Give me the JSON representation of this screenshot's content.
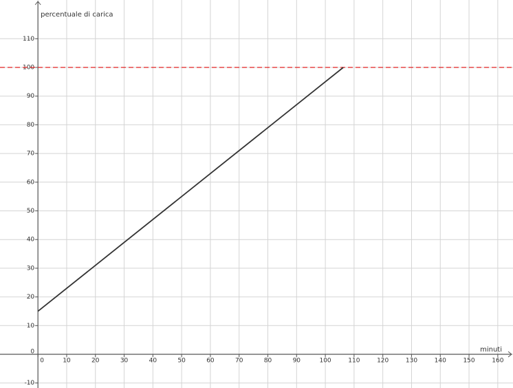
{
  "chart_data": {
    "type": "line",
    "x_label": "minuti",
    "y_label": "percentuale di carica",
    "x": [
      0,
      106.25
    ],
    "series": [
      {
        "color": "#333333",
        "values": [
          15,
          100
        ]
      }
    ],
    "reference_line": {
      "value": 100,
      "color": "#e02020"
    },
    "xlim": [
      -13.2,
      165.3
    ],
    "ylim": [
      -11.75,
      123.5
    ],
    "xticks": [
      0,
      10,
      20,
      30,
      40,
      50,
      60,
      70,
      80,
      90,
      100,
      110,
      120,
      130,
      140,
      150,
      160
    ],
    "yticks": [
      -10,
      0,
      10,
      20,
      30,
      40,
      50,
      60,
      70,
      80,
      90,
      100,
      110
    ],
    "grid": true
  }
}
